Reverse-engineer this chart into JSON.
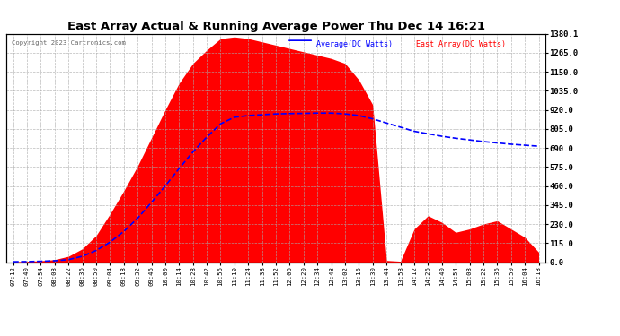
{
  "title": "East Array Actual & Running Average Power Thu Dec 14 16:21",
  "copyright": "Copyright 2023 Cartronics.com",
  "legend_avg": "Average(DC Watts)",
  "legend_east": "East Array(DC Watts)",
  "yticks": [
    0.0,
    115.0,
    230.0,
    345.0,
    460.0,
    575.0,
    690.0,
    805.0,
    920.0,
    1035.0,
    1150.0,
    1265.0,
    1380.1
  ],
  "ymax": 1380.1,
  "ymin": 0.0,
  "bg_color": "#ffffff",
  "plot_bg_color": "#ffffff",
  "grid_color": "#aaaaaa",
  "fill_color": "#ff0000",
  "avg_line_color": "#0000ff",
  "east_label_color": "#ff0000",
  "avg_label_color": "#0000ff",
  "title_color": "#000000",
  "xtick_labels": [
    "07:12",
    "07:40",
    "07:54",
    "08:08",
    "08:22",
    "08:36",
    "08:50",
    "09:04",
    "09:18",
    "09:32",
    "09:46",
    "10:00",
    "10:14",
    "10:28",
    "10:42",
    "10:56",
    "11:10",
    "11:24",
    "11:38",
    "11:52",
    "12:06",
    "12:20",
    "12:34",
    "12:48",
    "13:02",
    "13:16",
    "13:30",
    "13:44",
    "13:58",
    "14:12",
    "14:26",
    "14:40",
    "14:54",
    "15:08",
    "15:22",
    "15:36",
    "15:50",
    "16:04",
    "16:18"
  ],
  "east_power": [
    2,
    5,
    8,
    15,
    35,
    80,
    160,
    290,
    430,
    580,
    750,
    920,
    1080,
    1200,
    1280,
    1350,
    1360,
    1350,
    1330,
    1310,
    1290,
    1270,
    1250,
    1230,
    1200,
    1100,
    950,
    10,
    5,
    200,
    280,
    240,
    180,
    200,
    230,
    250,
    200,
    150,
    60
  ],
  "avg_power": [
    2,
    3,
    5,
    8,
    15,
    35,
    70,
    120,
    185,
    265,
    360,
    460,
    565,
    665,
    755,
    835,
    875,
    885,
    890,
    895,
    897,
    898,
    900,
    900,
    895,
    885,
    865,
    840,
    815,
    790,
    775,
    760,
    748,
    738,
    728,
    720,
    712,
    706,
    700
  ]
}
